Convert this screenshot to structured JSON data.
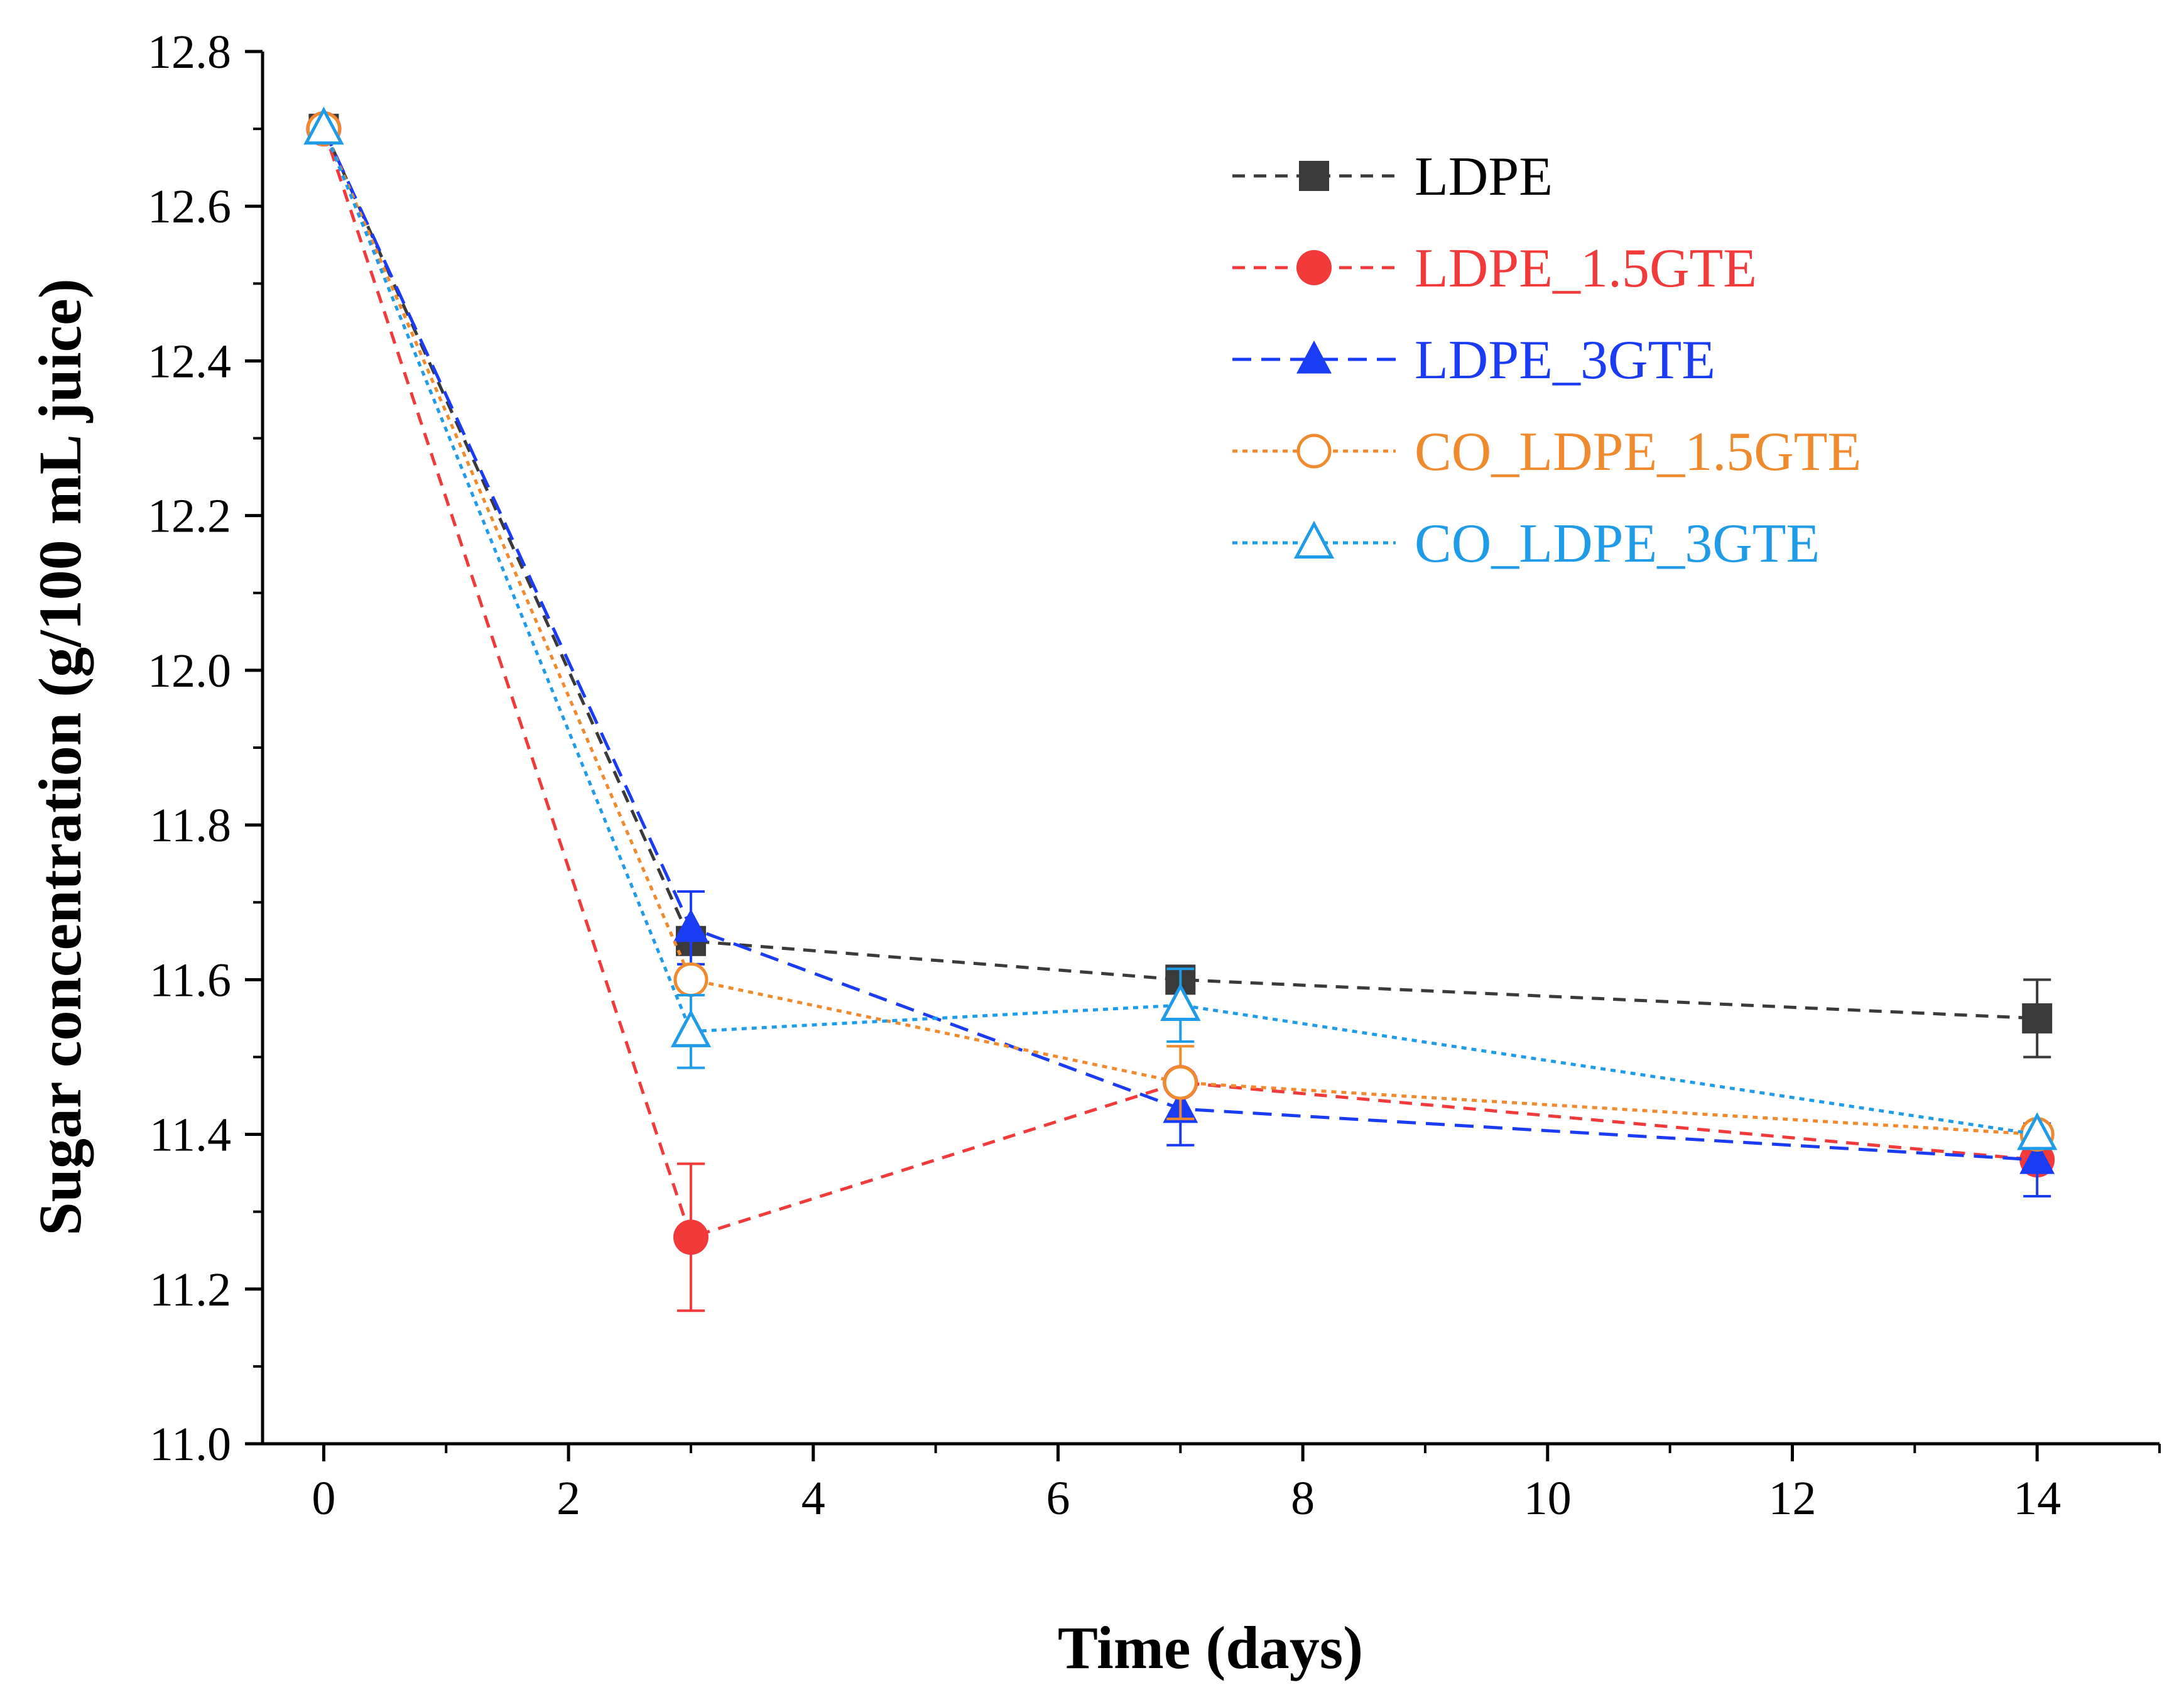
{
  "chart_data": {
    "type": "line",
    "title": "",
    "xlabel": "Time (days)",
    "ylabel": "Sugar concentration (g/100 mL juice)",
    "xlim": [
      -0.5,
      15
    ],
    "ylim": [
      11.0,
      12.8
    ],
    "x_ticks": [
      0,
      2,
      4,
      6,
      8,
      10,
      12,
      14
    ],
    "y_ticks": [
      11.0,
      11.2,
      11.4,
      11.6,
      11.8,
      12.0,
      12.2,
      12.4,
      12.6,
      12.8
    ],
    "grid": false,
    "legend_position": "top-right",
    "x": [
      0,
      3,
      7,
      14
    ],
    "series": [
      {
        "name": "LDPE",
        "color": "#3a3a3a",
        "marker": "square-filled",
        "dash": "dashed",
        "values": [
          12.7,
          11.65,
          11.6,
          11.55
        ],
        "errors": [
          0.0,
          0.0,
          0.0,
          0.05
        ]
      },
      {
        "name": "LDPE_1.5GTE",
        "color": "#f23a3a",
        "marker": "circle-filled",
        "dash": "dashed",
        "values": [
          12.7,
          11.267,
          11.467,
          11.367
        ],
        "errors": [
          0.0,
          0.095,
          0.0,
          0.0
        ]
      },
      {
        "name": "LDPE_3GTE",
        "color": "#1a3cf5",
        "marker": "triangle-filled",
        "dash": "long-dashed",
        "values": [
          12.7,
          11.667,
          11.433,
          11.367
        ],
        "errors": [
          0.0,
          0.047,
          0.047,
          0.047
        ]
      },
      {
        "name": "CO_LDPE_1.5GTE",
        "color": "#ef8a2e",
        "marker": "circle-open",
        "dash": "dotted",
        "values": [
          12.7,
          11.6,
          11.467,
          11.4
        ],
        "errors": [
          0.0,
          0.0,
          0.047,
          0.0
        ]
      },
      {
        "name": "CO_LDPE_3GTE",
        "color": "#1f9be8",
        "marker": "triangle-open",
        "dash": "dotted",
        "values": [
          12.7,
          11.533,
          11.567,
          11.4
        ],
        "errors": [
          0.0,
          0.047,
          0.047,
          0.0
        ]
      }
    ]
  }
}
